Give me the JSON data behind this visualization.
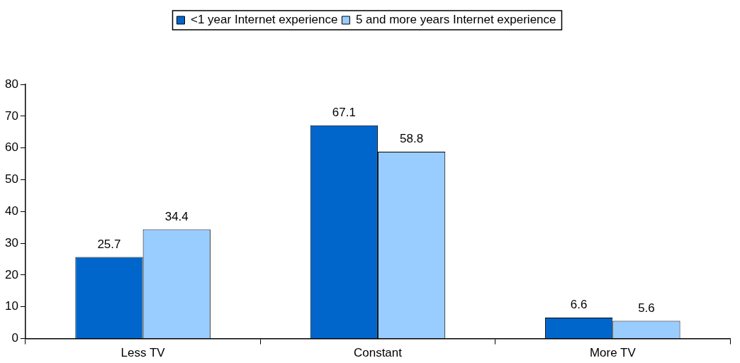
{
  "chart_data": {
    "type": "bar",
    "categories": [
      "Less TV",
      "Constant",
      "More TV"
    ],
    "series": [
      {
        "name": "<1 year Internet experience",
        "color": "#0066cc",
        "values": [
          25.7,
          67.1,
          6.6
        ]
      },
      {
        "name": "5 and more years Internet experience",
        "color": "#99ccff",
        "values": [
          34.4,
          58.8,
          5.6
        ]
      }
    ],
    "ylim": [
      0,
      80
    ],
    "yticks": [
      0,
      10,
      20,
      30,
      40,
      50,
      60,
      70,
      80
    ],
    "grid": false,
    "legend": "top",
    "data_labels": true
  }
}
